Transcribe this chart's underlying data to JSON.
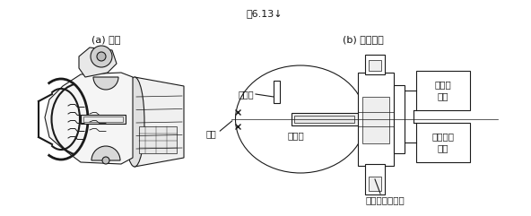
{
  "bg_color": "#ffffff",
  "title": "图6.13↓",
  "label_a": "(a) 外形",
  "label_b": "(b) 原理示意",
  "text_lens": "透镜",
  "text_arc": "弧光灯",
  "text_shade": "遮光板",
  "text_ignite": "引燃及稳弧部件",
  "text_box1": "电子控制\n装置",
  "text_box2": "功率输\n出级",
  "line_color": "#1a1a1a",
  "lw": 0.8
}
